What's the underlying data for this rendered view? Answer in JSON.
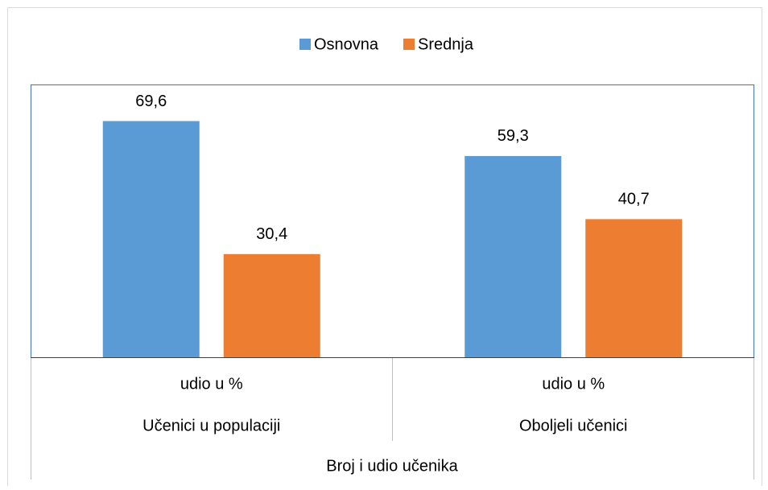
{
  "chart_data": {
    "type": "bar",
    "categories": [
      "udio u %",
      "udio u %"
    ],
    "groups": [
      "Učenici u populaciji",
      "Oboljeli učenici"
    ],
    "xlabel": "Broj i udio učenika",
    "series": [
      {
        "name": "Osnovna",
        "color": "#5b9bd5",
        "values": [
          69.6,
          59.3
        ],
        "value_labels": [
          "69,6",
          "59,3"
        ]
      },
      {
        "name": "Srednja",
        "color": "#ed7d31",
        "values": [
          30.4,
          40.7
        ],
        "value_labels": [
          "30,4",
          "40,7"
        ]
      }
    ],
    "legend": "top"
  }
}
